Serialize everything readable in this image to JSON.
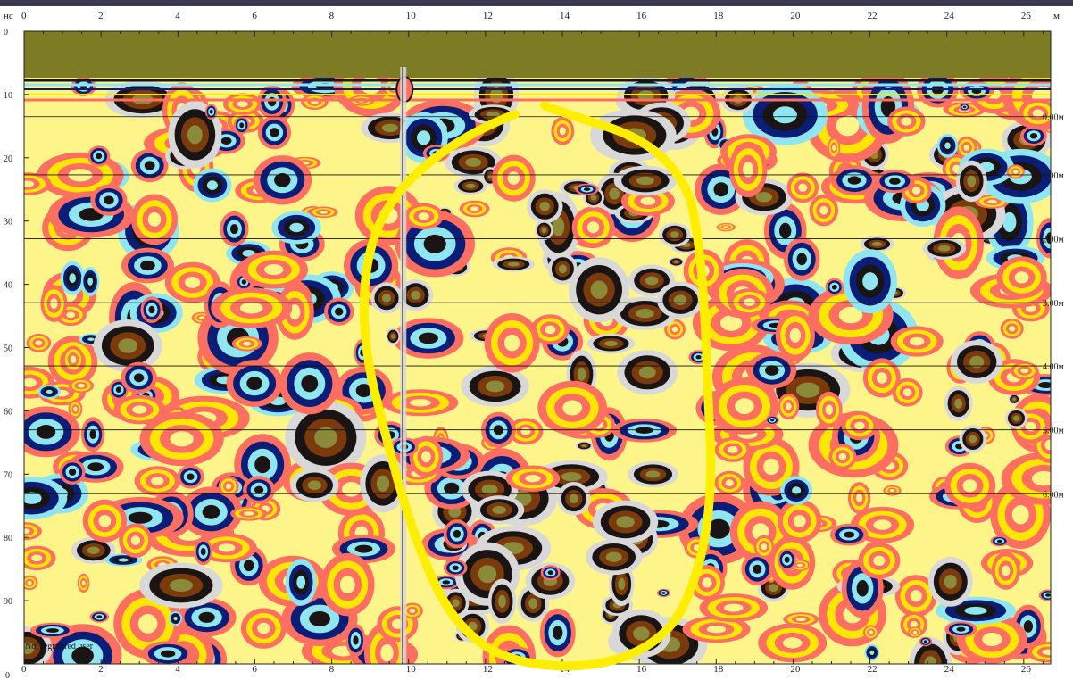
{
  "chart_data": {
    "type": "heatmap",
    "title": "",
    "x_unit": "м",
    "y_unit": "нс",
    "xlim": [
      0,
      26.7
    ],
    "ylim": [
      0,
      100
    ],
    "x_ticks": [
      0,
      2,
      4,
      6,
      8,
      10,
      12,
      14,
      16,
      18,
      20,
      22,
      24,
      26
    ],
    "x_tick_labels": [
      "0",
      "2",
      "4",
      "6",
      "8",
      "10",
      "12",
      "14",
      "16",
      "18",
      "20",
      "22",
      "24",
      "26"
    ],
    "y_ticks": [
      0,
      10,
      20,
      30,
      40,
      50,
      60,
      70,
      80,
      90
    ],
    "y_tick_labels": [
      "0",
      "10",
      "20",
      "30",
      "40",
      "50",
      "60",
      "70",
      "80",
      "90"
    ],
    "bottom_left_label": "0",
    "depth_markers": [
      {
        "label": "0.00м",
        "ns": 13.5
      },
      {
        "label": "1.00м",
        "ns": 22.7
      },
      {
        "label": "2.00м",
        "ns": 32.8
      },
      {
        "label": "3.00м",
        "ns": 42.9
      },
      {
        "label": "4.00м",
        "ns": 52.9
      },
      {
        "label": "5.00м",
        "ns": 63.0
      },
      {
        "label": "6.00м",
        "ns": 73.1
      }
    ],
    "trace_break_m": 9.85,
    "annotation": {
      "shape": "hand-drawn loop",
      "color": "#ffee00"
    },
    "palette": [
      "#fdf58a",
      "#ff6f61",
      "#ffe600",
      "#8fe6f0",
      "#0a1e78",
      "#1a1414",
      "#7a3a0c",
      "#8a8a3a",
      "#d8d8d8"
    ],
    "air_band_color": "#7d7c24",
    "watermark": "Not registered user"
  }
}
